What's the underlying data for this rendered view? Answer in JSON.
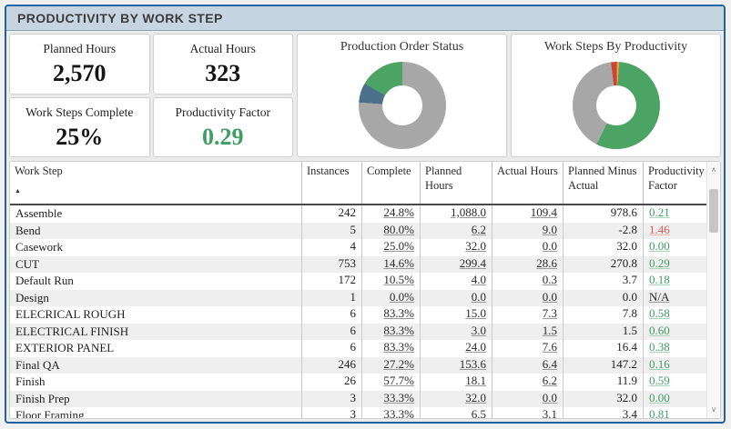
{
  "header": {
    "title": "PRODUCTIVITY BY WORK STEP"
  },
  "kpis": [
    {
      "label": "Planned Hours",
      "value": "2,570",
      "color": "#141414"
    },
    {
      "label": "Actual Hours",
      "value": "323",
      "color": "#141414"
    },
    {
      "label": "Work Steps Complete",
      "value": "25%",
      "color": "#141414"
    },
    {
      "label": "Productivity Factor",
      "value": "0.29",
      "color": "#3f9e63"
    }
  ],
  "chart_data": [
    {
      "type": "pie",
      "donut": true,
      "title": "Production Order Status",
      "legend": "none",
      "start_angle": 0,
      "slices": [
        {
          "label": "segment-gray",
          "value": 76.1,
          "color": "#a7a7a7"
        },
        {
          "label": "segment-blue",
          "value": 7.2,
          "color": "#4a708c"
        },
        {
          "label": "segment-green",
          "value": 16.7,
          "color": "#4ca464"
        }
      ]
    },
    {
      "type": "pie",
      "donut": true,
      "title": "Work Steps By Productivity",
      "legend": "none",
      "start_angle": -7,
      "slices": [
        {
          "label": "segment-red",
          "value": 2.2,
          "color": "#cd4335"
        },
        {
          "label": "segment-orange",
          "value": 0.8,
          "color": "#e8a33c"
        },
        {
          "label": "segment-green",
          "value": 56.4,
          "color": "#4ca464"
        },
        {
          "label": "segment-gray",
          "value": 40.6,
          "color": "#a7a7a7"
        }
      ]
    }
  ],
  "table": {
    "columns": [
      "Work Step",
      "Instances",
      "Complete",
      "Planned Hours",
      "Actual Hours",
      "Planned Minus Actual",
      "Productivity Factor"
    ],
    "sort": {
      "column": "Work Step",
      "direction": "ascending",
      "indicator": "▲"
    },
    "rows": [
      {
        "step": "Assemble",
        "instances": "242",
        "complete": "24.8%",
        "planned": "1,088.0",
        "actual": "109.4",
        "diff": "978.6",
        "pf": "0.21",
        "pf_state": "green"
      },
      {
        "step": "Bend",
        "instances": "5",
        "complete": "80.0%",
        "planned": "6.2",
        "actual": "9.0",
        "diff": "-2.8",
        "pf": "1.46",
        "pf_state": "red"
      },
      {
        "step": "Casework",
        "instances": "4",
        "complete": "25.0%",
        "planned": "32.0",
        "actual": "0.0",
        "diff": "32.0",
        "pf": "0.00",
        "pf_state": "green"
      },
      {
        "step": "CUT",
        "instances": "753",
        "complete": "14.6%",
        "planned": "299.4",
        "actual": "28.6",
        "diff": "270.8",
        "pf": "0.29",
        "pf_state": "green"
      },
      {
        "step": "Default Run",
        "instances": "172",
        "complete": "10.5%",
        "planned": "4.0",
        "actual": "0.3",
        "diff": "3.7",
        "pf": "0.18",
        "pf_state": "green"
      },
      {
        "step": "Design",
        "instances": "1",
        "complete": "0.0%",
        "planned": "0.0",
        "actual": "0.0",
        "diff": "0.0",
        "pf": "N/A",
        "pf_state": "na"
      },
      {
        "step": "ELECRICAL ROUGH",
        "instances": "6",
        "complete": "83.3%",
        "planned": "15.0",
        "actual": "7.3",
        "diff": "7.8",
        "pf": "0.58",
        "pf_state": "green"
      },
      {
        "step": "ELECTRICAL FINISH",
        "instances": "6",
        "complete": "83.3%",
        "planned": "3.0",
        "actual": "1.5",
        "diff": "1.5",
        "pf": "0.60",
        "pf_state": "green"
      },
      {
        "step": "EXTERIOR PANEL",
        "instances": "6",
        "complete": "83.3%",
        "planned": "24.0",
        "actual": "7.6",
        "diff": "16.4",
        "pf": "0.38",
        "pf_state": "green"
      },
      {
        "step": "Final QA",
        "instances": "246",
        "complete": "27.2%",
        "planned": "153.6",
        "actual": "6.4",
        "diff": "147.2",
        "pf": "0.16",
        "pf_state": "green"
      },
      {
        "step": "Finish",
        "instances": "26",
        "complete": "57.7%",
        "planned": "18.1",
        "actual": "6.2",
        "diff": "11.9",
        "pf": "0.59",
        "pf_state": "green"
      },
      {
        "step": "Finish Prep",
        "instances": "3",
        "complete": "33.3%",
        "planned": "32.0",
        "actual": "0.0",
        "diff": "32.0",
        "pf": "0.00",
        "pf_state": "green"
      },
      {
        "step": "Floor Framing",
        "instances": "3",
        "complete": "33.3%",
        "planned": "6.5",
        "actual": "3.1",
        "diff": "3.4",
        "pf": "0.81",
        "pf_state": "green"
      }
    ]
  },
  "scrollbar": {
    "up_glyph": "∧",
    "down_glyph": "∨"
  }
}
